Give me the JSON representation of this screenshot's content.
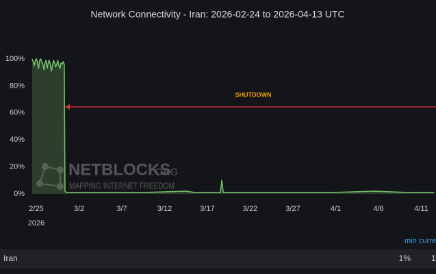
{
  "chart_data": {
    "type": "line",
    "title": "Network Connectivity - Iran: 2026-02-24 to 2026-04-13 UTC",
    "x": [
      "2026-02-25T00:00",
      "2026-02-25T03:00",
      "2026-02-25T06:00",
      "2026-02-25T09:00",
      "2026-02-25T12:00",
      "2026-02-25T15:00",
      "2026-02-25T18:00",
      "2026-02-25T21:00",
      "2026-02-26T00:00",
      "2026-02-26T03:00",
      "2026-02-26T06:00",
      "2026-02-26T09:00",
      "2026-02-26T12:00",
      "2026-02-26T15:00",
      "2026-02-26T18:00",
      "2026-02-26T21:00",
      "2026-02-27T00:00",
      "2026-02-27T03:00",
      "2026-02-27T06:00",
      "2026-02-27T09:00",
      "2026-02-27T12:00",
      "2026-02-27T15:00",
      "2026-02-27T18:00",
      "2026-02-27T21:00",
      "2026-02-28T00:00",
      "2026-02-28T03:00",
      "2026-02-28T06:00",
      "2026-02-28T09:00",
      "2026-02-28T12:00",
      "2026-02-28T15:00",
      "2026-02-28T18:00",
      "2026-02-28T20:00",
      "2026-03-01T00:00",
      "2026-03-05T00:00",
      "2026-03-10T00:00",
      "2026-03-15T00:00",
      "2026-03-16T00:00",
      "2026-03-19T00:00",
      "2026-03-19T04:00",
      "2026-03-19T08:00",
      "2026-03-25T00:00",
      "2026-04-01T00:00",
      "2026-04-06T00:00",
      "2026-04-10T00:00",
      "2026-04-13T00:00"
    ],
    "series": [
      {
        "name": "Iran",
        "color": "#73bf69",
        "values": [
          100,
          98,
          95,
          99,
          100,
          97,
          93,
          99,
          100,
          98,
          96,
          92,
          97,
          99,
          93,
          97,
          99,
          96,
          91,
          95,
          99,
          97,
          94,
          96,
          99,
          95,
          93,
          97,
          96,
          98,
          96,
          2,
          1,
          1,
          1,
          2,
          1,
          1,
          10,
          1,
          1,
          1,
          2,
          1,
          1
        ]
      }
    ],
    "xlim": [
      "2026-02-25T00:00",
      "2026-04-13T00:00"
    ],
    "xticks": [
      {
        "value": "2026-02-25",
        "label": "2/25",
        "sublabel": "2026"
      },
      {
        "value": "2026-03-02",
        "label": "3/2"
      },
      {
        "value": "2026-03-07",
        "label": "3/7"
      },
      {
        "value": "2026-03-12",
        "label": "3/12"
      },
      {
        "value": "2026-03-17",
        "label": "3/17"
      },
      {
        "value": "2026-03-22",
        "label": "3/22"
      },
      {
        "value": "2026-03-27",
        "label": "3/27"
      },
      {
        "value": "2026-04-01",
        "label": "4/1"
      },
      {
        "value": "2026-04-06",
        "label": "4/6"
      },
      {
        "value": "2026-04-11",
        "label": "4/11"
      }
    ],
    "ylim": [
      0,
      100
    ],
    "yticks": [
      {
        "value": 0,
        "label": "0%"
      },
      {
        "value": 20,
        "label": "20%"
      },
      {
        "value": 40,
        "label": "40%"
      },
      {
        "value": 60,
        "label": "60%"
      },
      {
        "value": 80,
        "label": "80%"
      },
      {
        "value": 100,
        "label": "100%"
      }
    ],
    "grid": false,
    "annotation": {
      "text": "SHUTDOWN",
      "color": "#f2a100",
      "arrow_color": "#e02f44"
    },
    "watermark": {
      "text": "NETBLOCKS",
      "suffix": ".ORG",
      "tagline": "MAPPING INTERNET FREEDOM"
    },
    "legend_table": {
      "columns": [
        "min",
        "curre"
      ],
      "rows": [
        {
          "name": "Iran",
          "values": [
            "1%",
            "1"
          ]
        }
      ]
    }
  }
}
